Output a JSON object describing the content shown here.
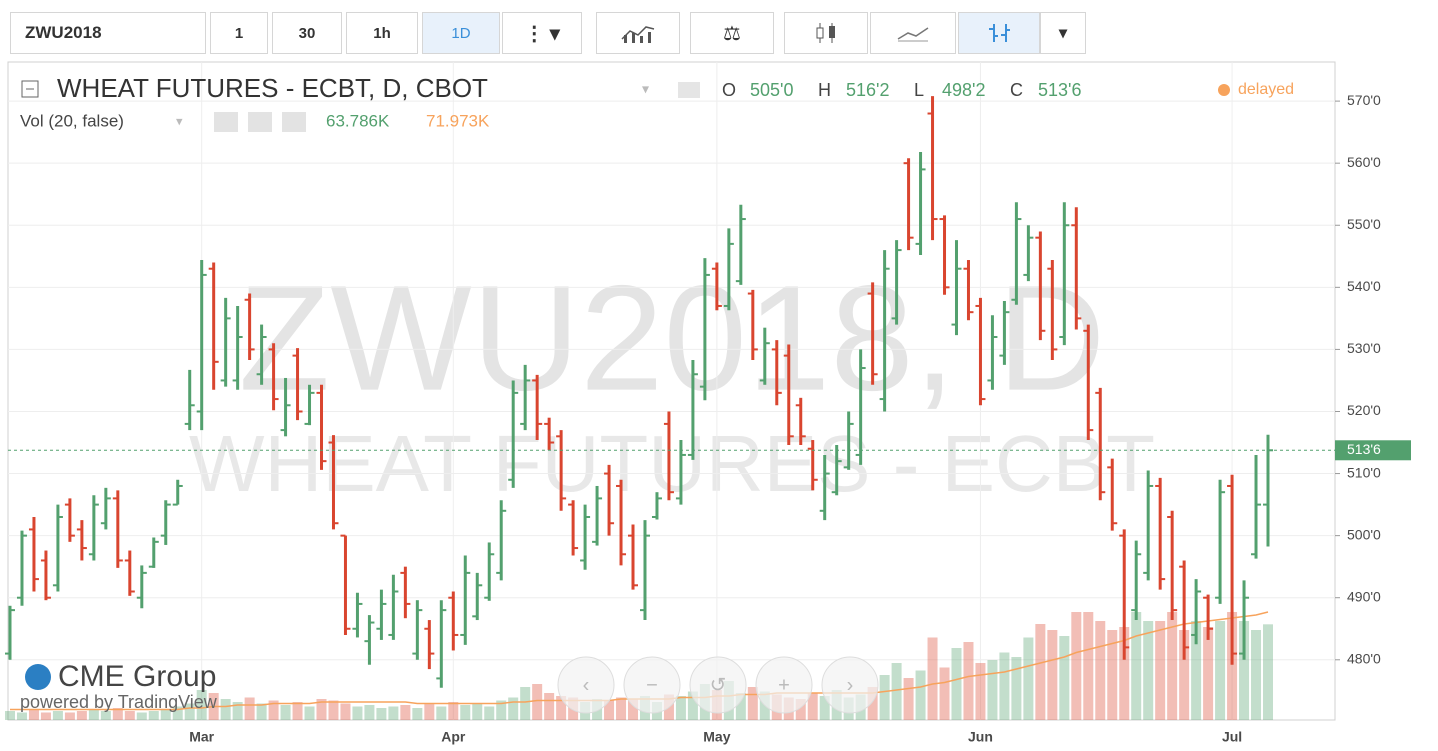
{
  "chart_data": {
    "type": "ohlc",
    "toolbar": [
      "ZWU2018",
      "1",
      "30",
      "1h",
      "1D"
    ],
    "title": "WHEAT FUTURES - ECBT, D, CBOT",
    "ohlc_legend": [
      {
        "name": "O",
        "value": 505,
        "label": "505'0"
      },
      {
        "name": "H",
        "value": 516.25,
        "label": "516'2"
      },
      {
        "name": "L",
        "value": 498.25,
        "label": "498'2"
      },
      {
        "name": "C",
        "value": 513.75,
        "label": "513'6"
      }
    ],
    "status": "delayed",
    "volume_title": "Vol (20, false)",
    "volume_legend": [
      {
        "value": 63.786,
        "label": "63.786K"
      },
      {
        "value": 71.973,
        "label": "71.973K"
      }
    ],
    "watermark": [
      "ZWU2018, D",
      "WHEAT FUTURES - ECBT"
    ],
    "logo": "CME Group",
    "logo_sub": "powered by TradingView",
    "last_price": {
      "value": 513.75,
      "label": "513'6"
    },
    "up_color": "#53a06e",
    "down_color": "#d9452f",
    "ma_color": "#f7a35c",
    "ylim": [
      470.3,
      576.3
    ],
    "yticks": [
      {
        "value": 480,
        "label": "480'0"
      },
      {
        "value": 490,
        "label": "490'0"
      },
      {
        "value": 500,
        "label": "500'0"
      },
      {
        "value": 510,
        "label": "510'0"
      },
      {
        "value": 520,
        "label": "520'0"
      },
      {
        "value": 530,
        "label": "530'0"
      },
      {
        "value": 540,
        "label": "540'0"
      },
      {
        "value": 550,
        "label": "550'0"
      },
      {
        "value": 560,
        "label": "560'0"
      },
      {
        "value": 570,
        "label": "570'0"
      }
    ],
    "volume_lim": [
      0,
      100
    ],
    "grid": true,
    "categories": [
      null,
      null,
      null,
      null,
      null,
      null,
      null,
      null,
      null,
      null,
      null,
      null,
      null,
      null,
      null,
      null,
      "Mar",
      null,
      null,
      null,
      null,
      null,
      null,
      null,
      null,
      null,
      null,
      null,
      null,
      null,
      null,
      null,
      null,
      null,
      null,
      null,
      null,
      "Apr",
      null,
      null,
      null,
      null,
      null,
      null,
      null,
      null,
      null,
      null,
      null,
      null,
      null,
      null,
      null,
      null,
      null,
      null,
      null,
      null,
      null,
      "May",
      null,
      null,
      null,
      null,
      null,
      null,
      null,
      null,
      null,
      null,
      null,
      null,
      null,
      null,
      null,
      null,
      null,
      null,
      null,
      null,
      null,
      "Jun",
      null,
      null,
      null,
      null,
      null,
      null,
      null,
      null,
      null,
      null,
      null,
      null,
      null,
      null,
      null,
      null,
      null,
      null,
      null,
      null,
      "Jul",
      null,
      null,
      null
    ],
    "open": [
      481,
      490,
      501,
      496,
      492,
      505,
      501,
      497,
      502,
      506,
      496,
      490,
      495,
      500,
      505,
      518,
      520,
      543,
      525,
      525,
      538,
      526,
      530,
      517,
      529,
      518,
      523,
      515,
      500,
      485,
      483,
      485,
      484,
      494,
      481,
      485,
      477,
      490,
      484,
      487,
      490,
      494,
      509,
      518,
      525,
      518,
      516,
      505,
      496,
      499,
      510,
      508,
      500,
      488,
      503,
      518,
      506,
      513,
      524,
      543,
      537,
      541,
      539,
      525,
      530,
      529,
      521,
      514,
      504,
      507,
      511,
      513,
      539,
      522,
      535,
      560,
      547,
      568,
      551,
      534,
      543,
      537,
      525,
      529,
      538,
      542,
      548,
      543,
      532,
      550,
      533,
      523,
      511,
      500,
      488,
      494,
      508,
      503,
      495,
      484,
      490,
      490,
      508,
      481,
      497,
      505
    ],
    "high": [
      488.7,
      500.8,
      503,
      497.6,
      505,
      506,
      502.5,
      506.5,
      507.7,
      507.3,
      497.6,
      495.2,
      499.7,
      505.7,
      509,
      526.7,
      544.4,
      544,
      538.3,
      537,
      539,
      534,
      531,
      525.4,
      530.2,
      524.3,
      524.3,
      516.2,
      500,
      490.8,
      487.2,
      491.3,
      493.7,
      495,
      489.6,
      486.4,
      489.6,
      491,
      496.8,
      494,
      498.9,
      505.7,
      525,
      527.5,
      525.9,
      519,
      517,
      505.7,
      505,
      508,
      511.4,
      509,
      501.8,
      502.5,
      507,
      520,
      515.4,
      528.3,
      544.7,
      544,
      549.5,
      553.3,
      539.6,
      533.5,
      531.5,
      530.8,
      522.2,
      515.4,
      513,
      514.6,
      520,
      530,
      540.8,
      546,
      547.6,
      560.8,
      561.8,
      570.8,
      551.6,
      547.6,
      544.4,
      538.3,
      535.5,
      537.8,
      553.7,
      550,
      549,
      544.4,
      553.7,
      552.9,
      534,
      523.8,
      512.4,
      501,
      499.2,
      510.5,
      509.3,
      504,
      496,
      493,
      490.5,
      509,
      509.8,
      492.8,
      513,
      516.25
    ],
    "low": [
      480,
      488.7,
      491,
      489.6,
      491,
      499,
      496,
      496,
      501,
      494.8,
      490.3,
      488.3,
      494.8,
      498.5,
      505,
      517,
      517,
      523.5,
      524,
      523.5,
      528.3,
      524.3,
      520.2,
      516,
      518.6,
      517.8,
      510.6,
      501,
      484,
      483.6,
      479.2,
      483.2,
      483.2,
      486.7,
      480,
      478.5,
      475.5,
      481.5,
      482.4,
      486.4,
      489.5,
      492.8,
      507.7,
      517,
      515.4,
      513.8,
      504,
      496.8,
      494.5,
      498.4,
      500,
      495.2,
      491.3,
      486.4,
      502.6,
      505.7,
      505,
      512.2,
      521.8,
      536.3,
      536.3,
      540.4,
      528.3,
      524.3,
      521,
      514.6,
      514.6,
      507.3,
      502.5,
      506.5,
      510.6,
      511.4,
      524.3,
      520,
      534,
      546,
      545.2,
      547.6,
      538.8,
      532.3,
      534.7,
      521,
      523.5,
      527.5,
      537.2,
      541,
      531.5,
      528.3,
      530.7,
      533.2,
      515.4,
      505.7,
      500.8,
      480,
      486.4,
      492.8,
      491.3,
      486.4,
      480,
      482.5,
      483.2,
      489,
      479.2,
      480,
      496.3,
      498.25
    ],
    "close": [
      488,
      500,
      493,
      490,
      503,
      500,
      498,
      505,
      506,
      496,
      491,
      494,
      499,
      505,
      508,
      521,
      542,
      528,
      535,
      532,
      530,
      532,
      522,
      521,
      520,
      523,
      512,
      502,
      485,
      489,
      486,
      489,
      491,
      489,
      488,
      481,
      488,
      484,
      494,
      492,
      497,
      504,
      523,
      525,
      518,
      515,
      506,
      498,
      503,
      506,
      502,
      497,
      492,
      500,
      506,
      507,
      513,
      526,
      542,
      537,
      547,
      551,
      530,
      531,
      523,
      516,
      516,
      509,
      510,
      512,
      518,
      527,
      526,
      543,
      546,
      548,
      559,
      551,
      540,
      543,
      536,
      522,
      532,
      536,
      551,
      548,
      533,
      530,
      550,
      535,
      517,
      507,
      502,
      482,
      497,
      508,
      493,
      488,
      482,
      491,
      485,
      507,
      481,
      490,
      505,
      513.75
    ],
    "volume": [
      6,
      5,
      7,
      5,
      6,
      5,
      6,
      7,
      6,
      8,
      6,
      5,
      6,
      7,
      9,
      11,
      20,
      18,
      14,
      12,
      15,
      11,
      13,
      10,
      12,
      9,
      14,
      13,
      11,
      9,
      10,
      8,
      9,
      10,
      8,
      11,
      9,
      12,
      10,
      11,
      9,
      13,
      15,
      22,
      24,
      18,
      16,
      15,
      12,
      14,
      13,
      15,
      14,
      16,
      12,
      17,
      16,
      19,
      24,
      20,
      26,
      18,
      22,
      19,
      17,
      15,
      14,
      18,
      16,
      20,
      15,
      17,
      22,
      30,
      38,
      28,
      33,
      55,
      35,
      48,
      52,
      38,
      40,
      45,
      42,
      55,
      64,
      60,
      56,
      72,
      72,
      66,
      60,
      62,
      72,
      66,
      66,
      72,
      60,
      66,
      62,
      66,
      72,
      66,
      60,
      63.786
    ],
    "volume_ma": [
      7,
      7,
      7,
      7,
      7,
      7,
      7,
      7,
      7,
      7,
      7,
      7,
      7,
      7,
      7,
      8,
      8,
      9,
      9,
      10,
      10,
      10,
      11,
      11,
      11,
      11,
      12,
      12,
      12,
      12,
      12,
      12,
      12,
      12,
      11,
      11,
      11,
      11,
      11,
      11,
      11,
      11,
      12,
      12,
      13,
      13,
      13,
      13,
      13,
      13,
      13,
      14,
      14,
      14,
      14,
      14,
      15,
      15,
      15,
      16,
      16,
      17,
      17,
      17,
      18,
      18,
      18,
      18,
      18,
      18,
      18,
      18,
      18,
      19,
      20,
      21,
      22,
      24,
      25,
      27,
      29,
      30,
      31,
      32,
      34,
      36,
      38,
      40,
      42,
      45,
      47,
      49,
      51,
      53,
      56,
      58,
      60,
      62,
      64,
      65,
      66,
      67,
      68,
      69,
      70,
      71.973
    ]
  }
}
